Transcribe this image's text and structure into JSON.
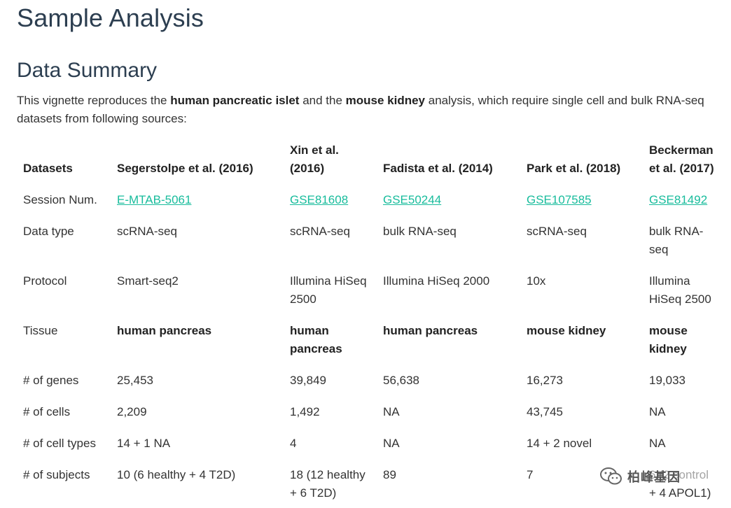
{
  "page": {
    "title": "Sample Analysis",
    "section_title": "Data Summary",
    "intro": {
      "part1": "This vignette reproduces the ",
      "bold1": "human pancreatic islet",
      "part2": " and the ",
      "bold2": "mouse kidney",
      "part3": " analysis, which require single cell and bulk RNA-seq datasets from following sources:"
    }
  },
  "table": {
    "headers": [
      "Datasets",
      "Segerstolpe et al. (2016)",
      "Xin et al. (2016)",
      "Fadista et al. (2014)",
      "Park et al. (2018)",
      "Beckerman et al. (2017)"
    ],
    "rows": [
      {
        "label": "Session Num.",
        "cells": [
          "E-MTAB-5061",
          "GSE81608",
          "GSE50244",
          "GSE107585",
          "GSE81492"
        ]
      },
      {
        "label": "Data type",
        "cells": [
          "scRNA-seq",
          "scRNA-seq",
          "bulk RNA-seq",
          "scRNA-seq",
          "bulk RNA-seq"
        ]
      },
      {
        "label": "Protocol",
        "cells": [
          "Smart-seq2",
          "Illumina HiSeq 2500",
          "Illumina HiSeq 2000",
          "10x",
          "Illumina HiSeq 2500"
        ]
      },
      {
        "label": "Tissue",
        "cells": [
          "human pancreas",
          "human pancreas",
          "human pancreas",
          "mouse kidney",
          "mouse kidney"
        ]
      },
      {
        "label": "# of genes",
        "cells": [
          "25,453",
          "39,849",
          "56,638",
          "16,273",
          "19,033"
        ]
      },
      {
        "label": "# of cells",
        "cells": [
          "2,209",
          "1,492",
          "NA",
          "43,745",
          "NA"
        ]
      },
      {
        "label": "# of cell types",
        "cells": [
          "14 + 1 NA",
          "4",
          "NA",
          "14 + 2 novel",
          "NA"
        ]
      },
      {
        "label": "# of subjects",
        "cells": [
          "10 (6 healthy + 4 T2D)",
          "18 (12 healthy + 6 T2D)",
          "89",
          "7",
          "6 (2 control + 4 APOL1)"
        ]
      }
    ]
  },
  "watermark": {
    "text": "柏峰基因",
    "icon": "wechat-icon"
  }
}
